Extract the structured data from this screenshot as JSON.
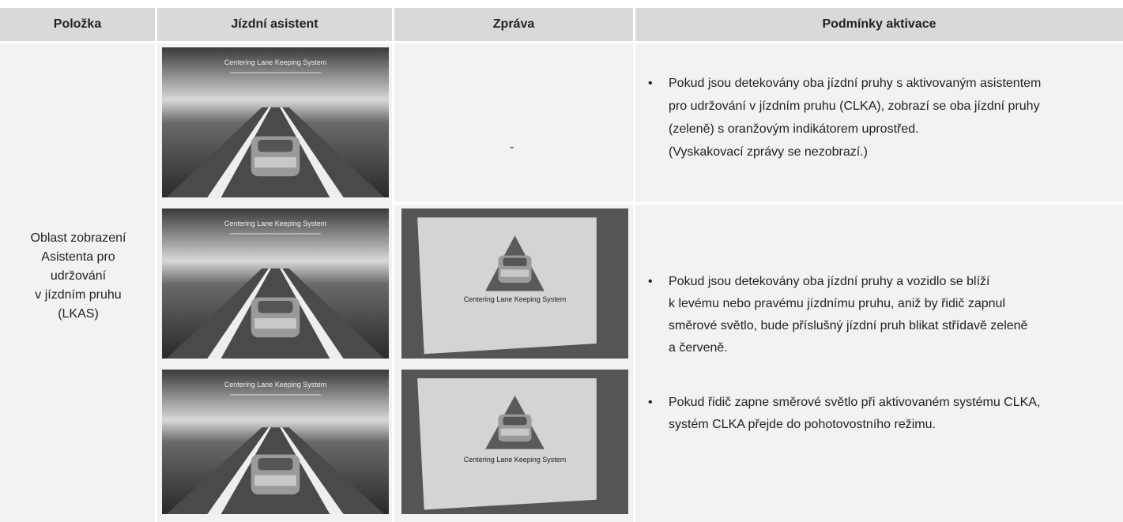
{
  "table": {
    "header": [
      "Položka",
      "Jízdní asistent",
      "Zpráva",
      "Podmínky aktivace"
    ],
    "item": [
      "Oblast zobrazení",
      "Asistenta pro",
      "udržování",
      "v jízdním pruhu",
      "(LKAS)"
    ],
    "rows": [
      {
        "assistant_label": "Centering Lane Keeping System",
        "message": "-",
        "conditions": [
          "Pokud jsou detekovány oba jízdní pruhy s aktivovaným asistentem",
          "pro udržování v jízdním pruhu (CLKA), zobrazí se oba jízdní pruhy",
          "(zeleně) s oranžovým indikátorem uprostřed."
        ],
        "note": "(Vyskakovací zprávy se nezobrazí.)"
      },
      {
        "assistant_label": "Centering Lane Keeping System",
        "message_label": "Centering Lane Keeping System"
      },
      {
        "assistant_label": "Centering Lane Keeping System",
        "message_label": "Centering Lane Keeping System"
      }
    ],
    "conditions_2": [
      [
        "Pokud jsou detekovány oba jízdní pruhy a vozidlo se blíží",
        "k levému nebo pravému jízdnímu pruhu, aniž by řidič zapnul",
        "směrové světlo, bude příslušný jízdní pruh blikat střídavě zeleně",
        "a červeně."
      ],
      [
        "Pokud řidič zapne směrové světlo při aktivovaném systému CLKA,",
        "systém CLKA přejde do pohotovostního režimu."
      ]
    ]
  }
}
